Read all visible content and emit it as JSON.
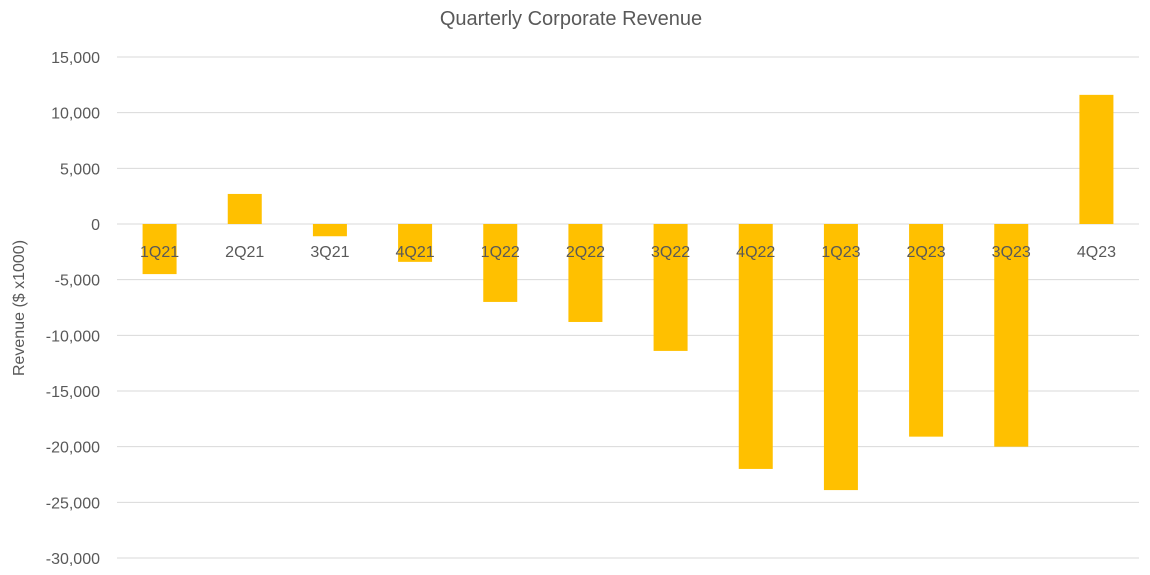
{
  "chart_data": {
    "type": "bar",
    "title": "Quarterly Corporate Revenue",
    "xlabel": "",
    "ylabel": "Revenue ($ x1000)",
    "ylim": [
      -30000,
      15000
    ],
    "y_ticks": [
      15000,
      10000,
      5000,
      0,
      -5000,
      -10000,
      -15000,
      -20000,
      -25000,
      -30000
    ],
    "y_tick_labels": [
      "15,000",
      "10,000",
      "5,000",
      "0",
      "-5,000",
      "-10,000",
      "-15,000",
      "-20,000",
      "-25,000",
      "-30,000"
    ],
    "categories": [
      "1Q21",
      "2Q21",
      "3Q21",
      "4Q21",
      "1Q22",
      "2Q22",
      "3Q22",
      "4Q22",
      "1Q23",
      "2Q23",
      "3Q23",
      "4Q23"
    ],
    "values": [
      -4500,
      2700,
      -1100,
      -3400,
      -7000,
      -8800,
      -11400,
      -22000,
      -23900,
      -19100,
      -20000,
      11600
    ],
    "bar_color": "#FFC000",
    "grid": true,
    "legend": "none"
  }
}
